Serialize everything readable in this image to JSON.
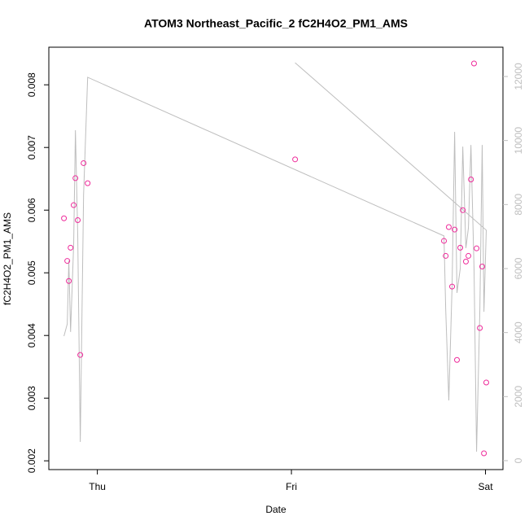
{
  "chart_data": {
    "type": "scatter",
    "title": "ATOM3 Northeast_Pacific_2 fC2H4O2_PM1_AMS",
    "x_label": "Date",
    "y_label": "fC2H4O2_PM1_AMS",
    "xlim": [
      -0.25,
      2.09
    ],
    "xticks": [
      {
        "value": 0,
        "label": "Thu"
      },
      {
        "value": 1,
        "label": "Fri"
      },
      {
        "value": 2,
        "label": "Sat"
      }
    ],
    "ylim": [
      0.00186,
      0.0086
    ],
    "yticks": [
      0.002,
      0.003,
      0.004,
      0.005,
      0.006,
      0.007,
      0.008
    ],
    "y2lim": [
      -280,
      12915
    ],
    "y2ticks": [
      0,
      2000,
      4000,
      6000,
      8000,
      10000,
      12000
    ],
    "y2_color": "#bebebe",
    "series": [
      {
        "type": "scatter",
        "color": "#ee2a9a",
        "x": [
          -0.172,
          -0.155,
          -0.147,
          -0.138,
          -0.122,
          -0.113,
          -0.101,
          -0.088,
          -0.071,
          -0.05,
          1.019,
          1.786,
          1.795,
          1.811,
          1.828,
          1.841,
          1.853,
          1.87,
          1.883,
          1.899,
          1.912,
          1.925,
          1.941,
          1.954,
          1.971,
          1.983,
          1.992,
          2.004
        ],
        "values": [
          0.00587,
          0.00519,
          0.00487,
          0.0054,
          0.00608,
          0.00651,
          0.00584,
          0.00369,
          0.00675,
          0.00643,
          0.00681,
          0.00551,
          0.00527,
          0.00573,
          0.00478,
          0.00569,
          0.00361,
          0.0054,
          0.006,
          0.00518,
          0.00527,
          0.00649,
          0.00834,
          0.00539,
          0.00412,
          0.0051,
          0.00212,
          0.00325
        ]
      },
      {
        "type": "line",
        "color": "#bebebe",
        "axis": "y2",
        "x": [
          -0.172,
          -0.155,
          -0.147,
          -0.138,
          -0.122,
          -0.113,
          -0.101,
          -0.088,
          -0.071,
          -0.05,
          1.786,
          1.795,
          1.811,
          1.828,
          1.841,
          1.853,
          1.87,
          1.883,
          1.899,
          1.912,
          1.925,
          1.941,
          1.954,
          1.971,
          1.983,
          1.992,
          2.004,
          1.019
        ],
        "values": [
          3890,
          4270,
          6250,
          4020,
          6760,
          10320,
          7020,
          585,
          8290,
          11975,
          7020,
          4730,
          1880,
          5490,
          10270,
          5240,
          6000,
          9810,
          6640,
          7270,
          9860,
          6000,
          280,
          4730,
          9860,
          4650,
          7200,
          12430
        ]
      }
    ]
  }
}
